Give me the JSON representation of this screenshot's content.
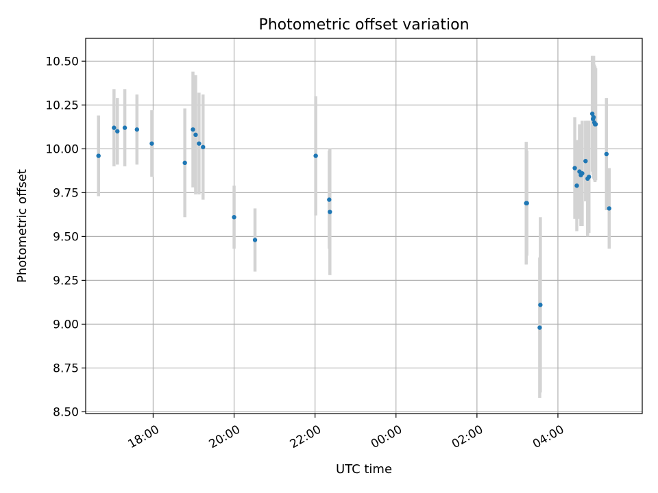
{
  "chart_data": {
    "type": "scatter",
    "title": "Photometric offset variation",
    "xlabel": "UTC time",
    "ylabel": "Photometric offset",
    "xlim": [
      "16:20",
      "06:05"
    ],
    "ylim": [
      8.49,
      10.63
    ],
    "xticks": [
      "18:00",
      "20:00",
      "22:00",
      "00:00",
      "02:00",
      "04:00"
    ],
    "yticks": [
      "8.50",
      "8.75",
      "9.00",
      "9.25",
      "9.50",
      "9.75",
      "10.00",
      "10.25",
      "10.50"
    ],
    "grid": true,
    "colors": {
      "point": "#1f77b4",
      "errorbar": "#d3d3d3",
      "grid": "#b0b0b0"
    },
    "points": [
      {
        "t": "16:39",
        "y": 9.96,
        "err": 0.23
      },
      {
        "t": "17:02",
        "y": 10.12,
        "err": 0.22
      },
      {
        "t": "17:07",
        "y": 10.1,
        "err": 0.19
      },
      {
        "t": "17:18",
        "y": 10.12,
        "err": 0.22
      },
      {
        "t": "17:36",
        "y": 10.11,
        "err": 0.2
      },
      {
        "t": "17:58",
        "y": 10.03,
        "err": 0.19
      },
      {
        "t": "18:47",
        "y": 9.92,
        "err": 0.31
      },
      {
        "t": "18:59",
        "y": 10.11,
        "err": 0.33
      },
      {
        "t": "19:03",
        "y": 10.08,
        "err": 0.34
      },
      {
        "t": "19:08",
        "y": 10.03,
        "err": 0.29
      },
      {
        "t": "19:14",
        "y": 10.01,
        "err": 0.3
      },
      {
        "t": "20:00",
        "y": 9.61,
        "err": 0.18
      },
      {
        "t": "20:31",
        "y": 9.48,
        "err": 0.18
      },
      {
        "t": "22:01",
        "y": 9.96,
        "err": 0.34
      },
      {
        "t": "22:21",
        "y": 9.71,
        "err": 0.28
      },
      {
        "t": "22:22",
        "y": 9.64,
        "err": 0.36
      },
      {
        "t": "03:13",
        "y": 9.69,
        "err": 0.35
      },
      {
        "t": "03:14",
        "y": 9.69,
        "err": 0.3
      },
      {
        "t": "03:33",
        "y": 8.98,
        "err": 0.4
      },
      {
        "t": "03:34",
        "y": 9.11,
        "err": 0.5
      },
      {
        "t": "04:25",
        "y": 9.89,
        "err": 0.29
      },
      {
        "t": "04:28",
        "y": 9.79,
        "err": 0.26
      },
      {
        "t": "04:32",
        "y": 9.87,
        "err": 0.27
      },
      {
        "t": "04:34",
        "y": 9.85,
        "err": 0.29
      },
      {
        "t": "04:36",
        "y": 9.86,
        "err": 0.3
      },
      {
        "t": "04:41",
        "y": 9.93,
        "err": 0.23
      },
      {
        "t": "04:44",
        "y": 9.83,
        "err": 0.33
      },
      {
        "t": "04:46",
        "y": 9.84,
        "err": 0.32
      },
      {
        "t": "04:51",
        "y": 10.2,
        "err": 0.33
      },
      {
        "t": "04:52",
        "y": 10.17,
        "err": 0.32
      },
      {
        "t": "04:53",
        "y": 10.18,
        "err": 0.35
      },
      {
        "t": "04:54",
        "y": 10.15,
        "err": 0.33
      },
      {
        "t": "04:55",
        "y": 10.14,
        "err": 0.33
      },
      {
        "t": "04:56",
        "y": 10.14,
        "err": 0.32
      },
      {
        "t": "05:12",
        "y": 9.97,
        "err": 0.32
      },
      {
        "t": "05:16",
        "y": 9.66,
        "err": 0.23
      }
    ]
  }
}
